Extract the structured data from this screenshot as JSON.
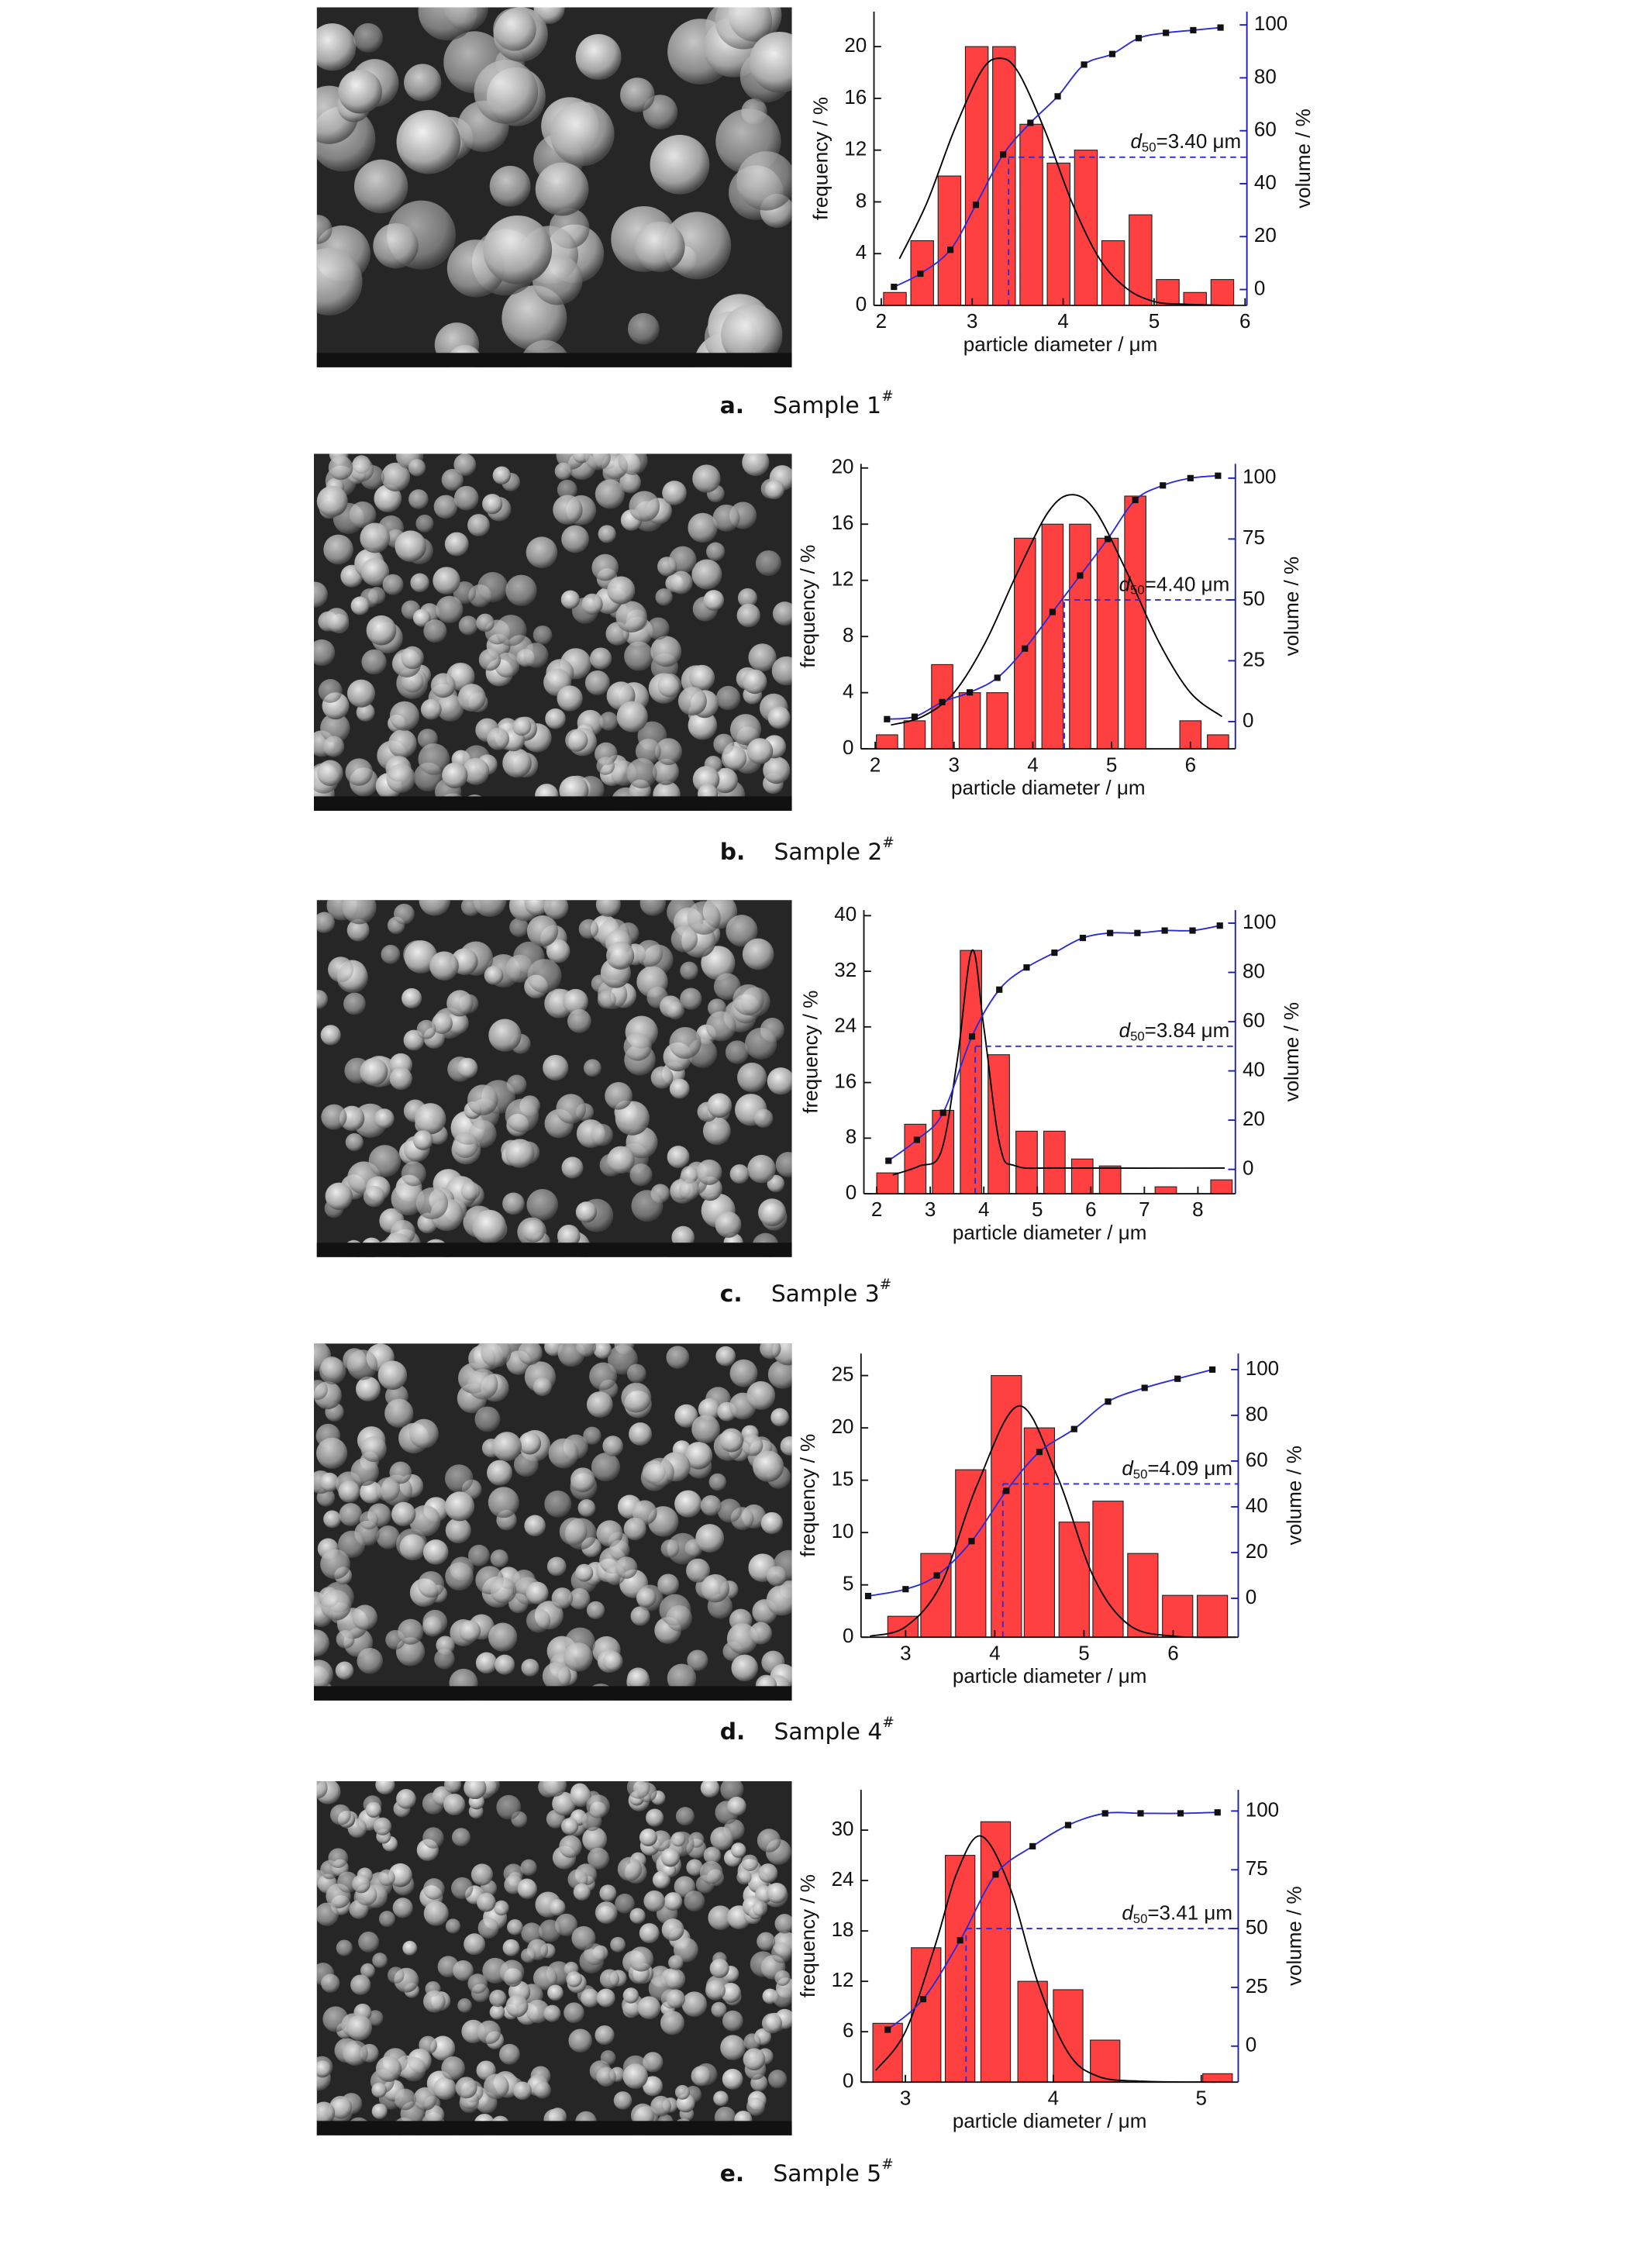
{
  "chart_data": [
    {
      "type": "bar",
      "caption": {
        "letter": "a.",
        "text": "Sample 1",
        "superscript": "#"
      },
      "xlabel": "particle diameter / μm",
      "ylabel": "frequency / %",
      "y2label": "volume / %",
      "xlim": [
        1.92,
        6.02
      ],
      "xticks": [
        2,
        3,
        4,
        5,
        6
      ],
      "ylim": [
        0,
        22.7
      ],
      "yticks": [
        0,
        4,
        8,
        12,
        16,
        20
      ],
      "y2lim": [
        -6,
        105
      ],
      "y2ticks": [
        0,
        20,
        40,
        60,
        80,
        100
      ],
      "bar_width": 0.25,
      "color": "#ff4040",
      "x": [
        2.15,
        2.45,
        2.75,
        3.05,
        3.35,
        3.65,
        3.95,
        4.25,
        4.55,
        4.85,
        5.15,
        5.45,
        5.75
      ],
      "values": [
        1,
        5,
        10,
        20,
        20,
        14,
        11,
        12,
        5,
        7,
        2,
        1,
        2
      ],
      "fit": {
        "color": "#000000",
        "x": [
          2.2,
          2.5,
          2.8,
          3.1,
          3.3,
          3.5,
          3.8,
          4.1,
          4.4,
          4.7,
          5.0,
          5.3,
          5.8
        ],
        "values": [
          3.6,
          7.9,
          13.5,
          18.1,
          19.1,
          18.1,
          13.5,
          7.9,
          3.6,
          1.3,
          0.3,
          0.1,
          0
        ]
      },
      "volume": {
        "axis": "y2",
        "color": "#2b2bd6",
        "marker_color": "#111111",
        "x": [
          2.14,
          2.43,
          2.76,
          3.04,
          3.34,
          3.64,
          3.94,
          4.23,
          4.54,
          4.83,
          5.13,
          5.43,
          5.73
        ],
        "values": [
          1,
          6,
          15,
          32,
          51,
          63,
          73,
          85,
          89,
          95,
          97,
          98,
          99
        ]
      },
      "annotation": {
        "symbol": "d",
        "subscript": "50",
        "text": "=3.40 μm",
        "x": 3.4,
        "y2": 50
      }
    },
    {
      "type": "bar",
      "caption": {
        "letter": "b.",
        "text": "Sample 2",
        "superscript": "#"
      },
      "xlabel": "particle diameter / μm",
      "ylabel": "frequency / %",
      "y2label": "volume / %",
      "xlim": [
        1.82,
        6.57
      ],
      "xticks": [
        2,
        3,
        4,
        5,
        6
      ],
      "ylim": [
        0,
        20.3
      ],
      "yticks": [
        0,
        4,
        8,
        12,
        16,
        20
      ],
      "y2lim": [
        -11.2,
        105.9
      ],
      "y2ticks": [
        0,
        25,
        50,
        75,
        100
      ],
      "bar_width": 0.27,
      "color": "#ff4040",
      "x": [
        2.15,
        2.5,
        2.85,
        3.2,
        3.55,
        3.9,
        4.25,
        4.6,
        4.95,
        5.3,
        6.0,
        6.35
      ],
      "values": [
        1,
        2,
        6,
        4,
        4,
        15,
        16,
        16,
        15,
        18,
        2,
        1
      ],
      "fit": {
        "color": "#000000",
        "x": [
          2.2,
          2.6,
          3.0,
          3.4,
          3.8,
          4.2,
          4.5,
          4.8,
          5.2,
          5.6,
          6.0,
          6.4
        ],
        "values": [
          1.7,
          2.3,
          4.0,
          7.6,
          12.5,
          16.9,
          18.1,
          16.9,
          12.5,
          7.6,
          4.0,
          2.3
        ]
      },
      "volume": {
        "axis": "y2",
        "color": "#2b2bd6",
        "marker_color": "#111111",
        "x": [
          2.15,
          2.5,
          2.85,
          3.2,
          3.55,
          3.9,
          4.25,
          4.6,
          4.95,
          5.3,
          5.65,
          6.0,
          6.35
        ],
        "values": [
          1,
          2,
          8,
          12,
          18,
          30,
          45,
          60,
          75,
          91,
          97,
          100,
          101
        ]
      },
      "annotation": {
        "symbol": "d",
        "subscript": "50",
        "text": "=4.40 μm",
        "x": 4.4,
        "y2": 50
      }
    },
    {
      "type": "bar",
      "caption": {
        "letter": "c.",
        "text": "Sample 3",
        "superscript": "#"
      },
      "xlabel": "particle diameter / μm",
      "ylabel": "frequency / %",
      "y2label": "volume / %",
      "xlim": [
        1.76,
        8.7
      ],
      "xticks": [
        2,
        3,
        4,
        5,
        6,
        7,
        8
      ],
      "ylim": [
        0,
        40.8
      ],
      "yticks": [
        0,
        8,
        16,
        24,
        32,
        40
      ],
      "y2lim": [
        -9.9,
        105.3
      ],
      "y2ticks": [
        0,
        20,
        40,
        60,
        80,
        100
      ],
      "bar_width": 0.4,
      "color": "#ff4040",
      "x": [
        2.2,
        2.72,
        3.24,
        3.76,
        4.28,
        4.8,
        5.32,
        5.84,
        6.36,
        7.4,
        8.44
      ],
      "values": [
        3,
        10,
        12,
        35,
        20,
        9,
        9,
        5,
        4,
        1,
        2
      ],
      "fit": {
        "color": "#000000",
        "x": [
          2.3,
          2.8,
          3.2,
          3.5,
          3.78,
          4.0,
          4.3,
          4.6,
          5.5,
          8.5
        ],
        "values": [
          2.7,
          4.0,
          6.0,
          19,
          35,
          24,
          7,
          4,
          3.7,
          3.7
        ]
      },
      "volume": {
        "axis": "y2",
        "color": "#2b2bd6",
        "marker_color": "#111111",
        "x": [
          2.22,
          2.75,
          3.24,
          3.78,
          4.29,
          4.8,
          5.32,
          5.85,
          6.36,
          6.87,
          7.38,
          7.9,
          8.41
        ],
        "values": [
          3.5,
          12,
          23,
          54,
          73,
          82,
          88,
          94,
          96,
          96,
          97,
          97,
          99
        ]
      },
      "annotation": {
        "symbol": "d",
        "subscript": "50",
        "text": "=3.84 μm",
        "x": 3.84,
        "y2": 50
      }
    },
    {
      "type": "bar",
      "caption": {
        "letter": "d.",
        "text": "Sample 4",
        "superscript": "#"
      },
      "xlabel": "particle diameter / μm",
      "ylabel": "frequency / %",
      "y2label": "volume / %",
      "xlim": [
        2.5,
        6.73
      ],
      "xticks": [
        3,
        4,
        5,
        6
      ],
      "ylim": [
        0,
        27.1
      ],
      "yticks": [
        0,
        5,
        10,
        15,
        20,
        25
      ],
      "y2lim": [
        -17,
        107
      ],
      "y2ticks": [
        0,
        20,
        40,
        60,
        80,
        100
      ],
      "bar_width": 0.34,
      "color": "#ff4040",
      "x": [
        2.97,
        3.34,
        3.73,
        4.13,
        4.5,
        4.89,
        5.27,
        5.66,
        6.05,
        6.44
      ],
      "values": [
        2,
        8,
        16,
        25,
        20,
        11,
        13,
        8,
        4,
        4
      ],
      "fit": {
        "color": "#000000",
        "x": [
          2.6,
          3.0,
          3.4,
          3.8,
          4.27,
          4.7,
          5.1,
          5.5,
          6.0,
          6.7
        ],
        "values": [
          0.1,
          1.0,
          5.1,
          14.5,
          22.1,
          15.4,
          5.9,
          1.2,
          0.1,
          0
        ]
      },
      "volume": {
        "axis": "y2",
        "color": "#2b2bd6",
        "marker_color": "#111111",
        "x": [
          2.58,
          3.0,
          3.35,
          3.74,
          4.13,
          4.5,
          4.89,
          5.27,
          5.68,
          6.05,
          6.44
        ],
        "values": [
          1,
          4,
          10,
          25,
          47,
          64,
          74,
          86,
          92,
          96,
          100
        ]
      },
      "annotation": {
        "symbol": "d",
        "subscript": "50",
        "text": "=4.09 μm",
        "x": 4.09,
        "y2": 50
      }
    },
    {
      "type": "bar",
      "caption": {
        "letter": "e.",
        "text": "Sample 5",
        "superscript": "#"
      },
      "xlabel": "particle diameter / μm",
      "ylabel": "frequency / %",
      "y2label": "volume / %",
      "xlim": [
        2.7,
        5.25
      ],
      "xticks": [
        3,
        4,
        5
      ],
      "ylim": [
        0,
        34.8
      ],
      "yticks": [
        0,
        6,
        12,
        18,
        24,
        30
      ],
      "y2lim": [
        -15.3,
        109
      ],
      "y2ticks": [
        0,
        25,
        50,
        75,
        100
      ],
      "bar_width": 0.2,
      "color": "#ff4040",
      "x": [
        2.88,
        3.14,
        3.37,
        3.61,
        3.86,
        4.1,
        4.35,
        5.11
      ],
      "values": [
        7,
        16,
        27,
        31,
        12,
        11,
        5,
        1
      ],
      "fit": {
        "color": "#000000",
        "x": [
          2.8,
          3.0,
          3.2,
          3.35,
          3.51,
          3.7,
          3.9,
          4.1,
          4.3,
          4.6,
          5.1
        ],
        "values": [
          1.4,
          6.0,
          16.2,
          25,
          29.3,
          23.5,
          11.6,
          3.5,
          0.7,
          0.1,
          0
        ]
      },
      "volume": {
        "axis": "y2",
        "color": "#2b2bd6",
        "marker_color": "#111111",
        "x": [
          2.88,
          3.12,
          3.37,
          3.61,
          3.86,
          4.1,
          4.35,
          4.59,
          4.86,
          5.11
        ],
        "values": [
          7,
          20,
          45,
          73,
          85,
          94,
          99,
          99,
          99,
          99.4
        ]
      },
      "annotation": {
        "symbol": "d",
        "subscript": "50",
        "text": "=3.41 μm",
        "x": 3.41,
        "y2": 50
      }
    }
  ]
}
